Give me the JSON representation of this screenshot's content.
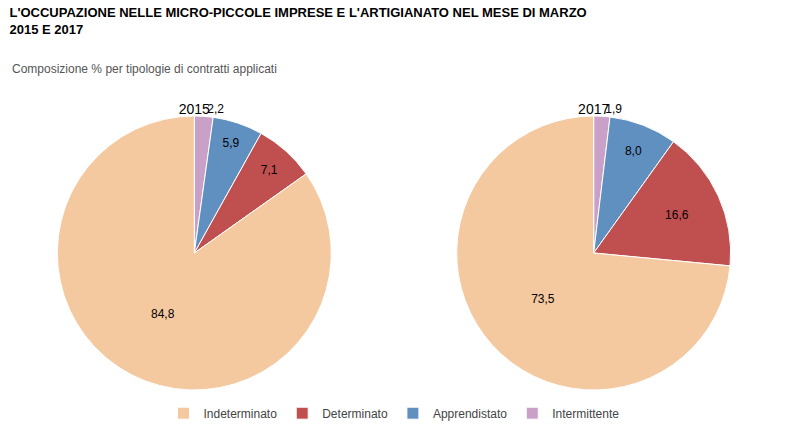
{
  "title": "L'OCCUPAZIONE NELLE MICRO-PICCOLE IMPRESE E L'ARTIGIANATO NEL MESE DI MARZO\n2015 E 2017",
  "subtitle": "Composizione % per tipologie di contratti applicati",
  "legend": "bottom",
  "chart_data": [
    {
      "type": "pie",
      "title": "2015",
      "categories": [
        "Intermittente",
        "Apprendistato",
        "Determinato",
        "Indeterminato"
      ],
      "values": [
        2.2,
        5.9,
        7.1,
        84.8
      ],
      "value_labels": [
        "2,2",
        "5,9",
        "7,1",
        "84,8"
      ],
      "data_labels": true,
      "colors": [
        "#C8A0C8",
        "#6090C0",
        "#C05050",
        "#F5C9A0"
      ]
    },
    {
      "type": "pie",
      "title": "2017",
      "categories": [
        "Intermittente",
        "Apprendistato",
        "Determinato",
        "Indeterminato"
      ],
      "values": [
        1.9,
        8.0,
        16.6,
        73.5
      ],
      "value_labels": [
        "1,9",
        "8,0",
        "16,6",
        "73,5"
      ],
      "data_labels": true,
      "colors": [
        "#C8A0C8",
        "#6090C0",
        "#C05050",
        "#F5C9A0"
      ]
    }
  ]
}
